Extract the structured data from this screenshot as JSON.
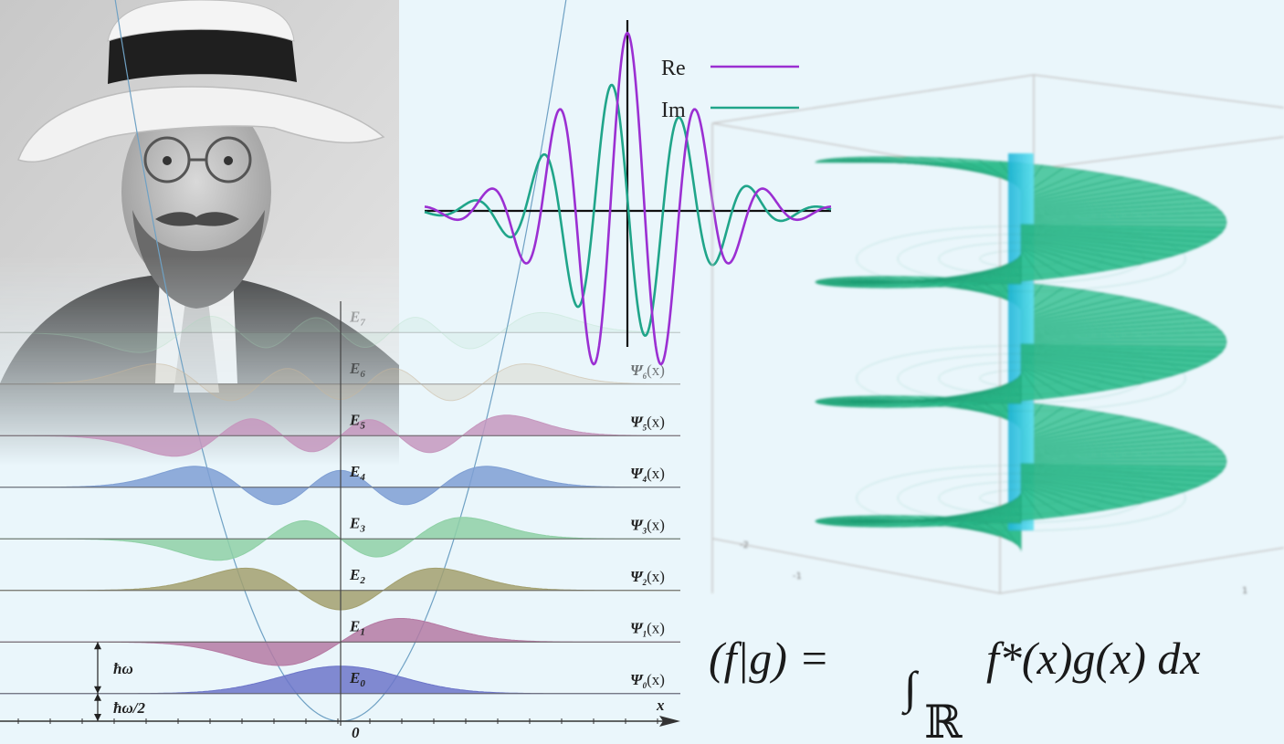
{
  "portrait": {
    "subject": "portrait-photo"
  },
  "oscillator": {
    "levels": [
      {
        "label": "E",
        "sub": "0",
        "psi": "Ψ",
        "psi_sub": "0",
        "arg": "(x)",
        "color": "#6d76c9",
        "n": 0
      },
      {
        "label": "E",
        "sub": "1",
        "psi": "Ψ",
        "psi_sub": "1",
        "arg": "(x)",
        "color": "#b57aa3",
        "n": 1
      },
      {
        "label": "E",
        "sub": "2",
        "psi": "Ψ",
        "psi_sub": "2",
        "arg": "(x)",
        "color": "#a3a06f",
        "n": 2
      },
      {
        "label": "E",
        "sub": "3",
        "psi": "Ψ",
        "psi_sub": "3",
        "arg": "(x)",
        "color": "#8fd0a6",
        "n": 3
      },
      {
        "label": "E",
        "sub": "4",
        "psi": "Ψ",
        "psi_sub": "4",
        "arg": "(x)",
        "color": "#7f9fd3",
        "n": 4
      },
      {
        "label": "E",
        "sub": "5",
        "psi": "Ψ",
        "psi_sub": "5",
        "arg": "(x)",
        "color": "#c698be",
        "n": 5
      },
      {
        "label": "E",
        "sub": "6",
        "psi": "Ψ",
        "psi_sub": "6",
        "arg": "(x)",
        "color": "#c9b79c",
        "n": 6
      },
      {
        "label": "E",
        "sub": "7",
        "psi": "",
        "psi_sub": "",
        "arg": "",
        "color": "#a6d9b8",
        "n": 7
      }
    ],
    "hbar_omega": "ħω",
    "hbar_omega_half": "ħω/2",
    "x_axis": "x",
    "origin": "0",
    "potential_color": "#6fa1c4"
  },
  "wave": {
    "legend": [
      {
        "label": "Re",
        "color": "#9b2fd2"
      },
      {
        "label": "Im",
        "color": "#20a58a"
      }
    ]
  },
  "helix": {
    "color": "#2fbf8f",
    "axis_color": "#39c7e6",
    "ticks": [
      "-2",
      "-1",
      "1"
    ]
  },
  "formula": {
    "lhs": "(f|g) =",
    "integral": "∫",
    "domain": "ℝ",
    "integrand": "f*(x)g(x) dx"
  }
}
